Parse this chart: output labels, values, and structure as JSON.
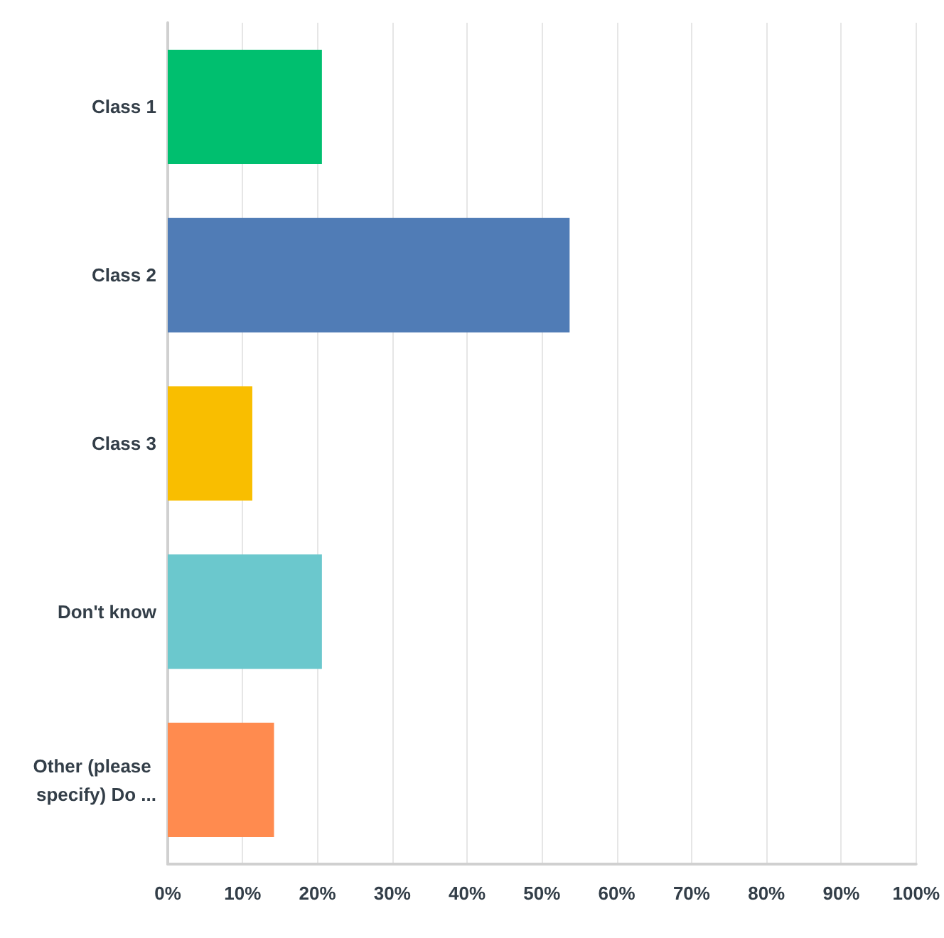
{
  "chart_data": {
    "type": "bar",
    "orientation": "horizontal",
    "categories": [
      "Class 1",
      "Class 2",
      "Class 3",
      "Don't know",
      "Other (please specify) Do ..."
    ],
    "values": [
      20.6,
      53.7,
      11.3,
      20.6,
      14.2
    ],
    "colors": [
      "#00bf6f",
      "#507cb6",
      "#f9be00",
      "#6bc8cd",
      "#ff8b4f"
    ],
    "xlim": [
      0,
      100
    ],
    "xticks": [
      {
        "value": 0,
        "label": "0%"
      },
      {
        "value": 10,
        "label": "10%"
      },
      {
        "value": 20,
        "label": "20%"
      },
      {
        "value": 30,
        "label": "30%"
      },
      {
        "value": 40,
        "label": "40%"
      },
      {
        "value": 50,
        "label": "50%"
      },
      {
        "value": 60,
        "label": "60%"
      },
      {
        "value": 70,
        "label": "70%"
      },
      {
        "value": 80,
        "label": "80%"
      },
      {
        "value": 90,
        "label": "90%"
      },
      {
        "value": 100,
        "label": "100%"
      }
    ],
    "grid": "x"
  }
}
